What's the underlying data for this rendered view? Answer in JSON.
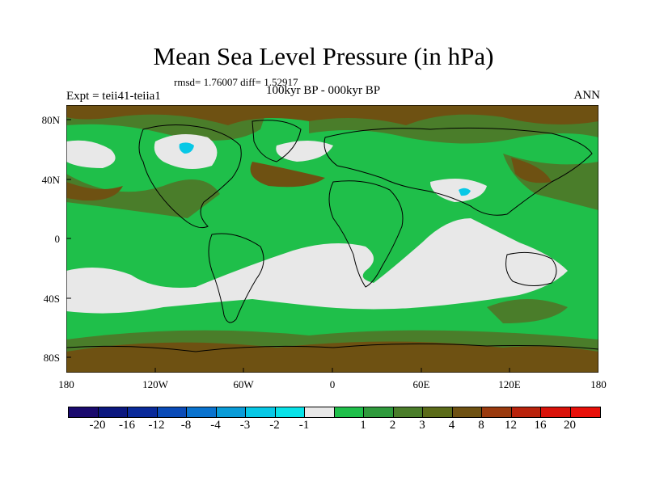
{
  "title": "Mean Sea Level Pressure (in hPa)",
  "stats": "rmsd= 1.76007 diff= 1.52917",
  "experiment": "Expt = teii41-teiia1",
  "period": "100kyr BP - 000kyr BP",
  "season": "ANN",
  "lat_labels": [
    "80N",
    "40N",
    "0",
    "40S",
    "80S"
  ],
  "lon_labels": [
    "180",
    "120W",
    "60W",
    "0",
    "60E",
    "120E",
    "180"
  ],
  "colorbar": {
    "colors": [
      "#1a0a6e",
      "#0b177f",
      "#0a2a9a",
      "#0a4bb8",
      "#0a73cf",
      "#0a9cd8",
      "#07c8e6",
      "#08e2e8",
      "#e8e8e8",
      "#1fbf4a",
      "#2f9a3c",
      "#4a7d2a",
      "#5b6b19",
      "#6e5112",
      "#9a3a0e",
      "#b9230c",
      "#d9120a",
      "#e8100a"
    ],
    "labels": [
      "-20",
      "-16",
      "-12",
      "-8",
      "-4",
      "-3",
      "-2",
      "-1",
      "1",
      "2",
      "3",
      "4",
      "8",
      "12",
      "16",
      "20"
    ]
  }
}
